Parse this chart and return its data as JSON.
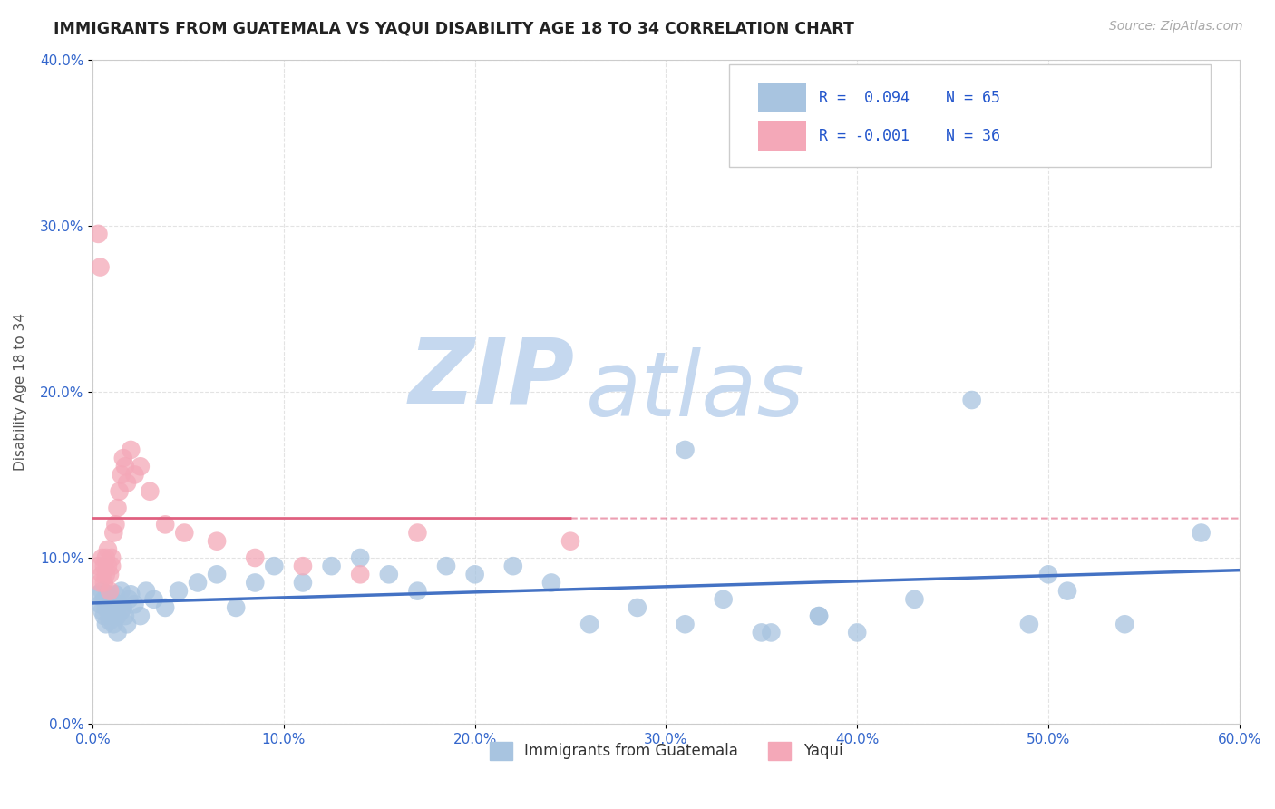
{
  "title": "IMMIGRANTS FROM GUATEMALA VS YAQUI DISABILITY AGE 18 TO 34 CORRELATION CHART",
  "source": "Source: ZipAtlas.com",
  "ylabel": "Disability Age 18 to 34",
  "xlim": [
    0.0,
    0.6
  ],
  "ylim": [
    0.0,
    0.4
  ],
  "xtick_labels": [
    "0.0%",
    "10.0%",
    "20.0%",
    "30.0%",
    "40.0%",
    "50.0%",
    "60.0%"
  ],
  "xtick_vals": [
    0.0,
    0.1,
    0.2,
    0.3,
    0.4,
    0.5,
    0.6
  ],
  "ytick_labels": [
    "0.0%",
    "10.0%",
    "20.0%",
    "30.0%",
    "40.0%"
  ],
  "ytick_vals": [
    0.0,
    0.1,
    0.2,
    0.3,
    0.4
  ],
  "color_blue": "#a8c4e0",
  "color_pink": "#f4a8b8",
  "line_blue": "#4472C4",
  "line_pink": "#e06080",
  "watermark_zip": "ZIP",
  "watermark_atlas": "atlas",
  "watermark_color": "#d0dff0",
  "blue_x": [
    0.003,
    0.004,
    0.005,
    0.005,
    0.006,
    0.006,
    0.007,
    0.007,
    0.008,
    0.008,
    0.009,
    0.009,
    0.01,
    0.01,
    0.011,
    0.011,
    0.012,
    0.012,
    0.013,
    0.013,
    0.014,
    0.015,
    0.015,
    0.016,
    0.017,
    0.018,
    0.019,
    0.02,
    0.022,
    0.025,
    0.028,
    0.032,
    0.038,
    0.045,
    0.055,
    0.065,
    0.075,
    0.085,
    0.095,
    0.11,
    0.125,
    0.14,
    0.155,
    0.17,
    0.185,
    0.2,
    0.22,
    0.24,
    0.26,
    0.285,
    0.31,
    0.33,
    0.355,
    0.38,
    0.4,
    0.43,
    0.46,
    0.49,
    0.51,
    0.54,
    0.31,
    0.35,
    0.38,
    0.5,
    0.58
  ],
  "blue_y": [
    0.078,
    0.072,
    0.068,
    0.08,
    0.075,
    0.065,
    0.07,
    0.06,
    0.078,
    0.068,
    0.072,
    0.062,
    0.075,
    0.065,
    0.07,
    0.06,
    0.068,
    0.078,
    0.065,
    0.055,
    0.072,
    0.08,
    0.068,
    0.07,
    0.065,
    0.06,
    0.075,
    0.078,
    0.072,
    0.065,
    0.08,
    0.075,
    0.07,
    0.08,
    0.085,
    0.09,
    0.07,
    0.085,
    0.095,
    0.085,
    0.095,
    0.1,
    0.09,
    0.08,
    0.095,
    0.09,
    0.095,
    0.085,
    0.06,
    0.07,
    0.06,
    0.075,
    0.055,
    0.065,
    0.055,
    0.075,
    0.195,
    0.06,
    0.08,
    0.06,
    0.165,
    0.055,
    0.065,
    0.09,
    0.115
  ],
  "pink_x": [
    0.003,
    0.004,
    0.005,
    0.005,
    0.006,
    0.006,
    0.007,
    0.007,
    0.008,
    0.008,
    0.009,
    0.009,
    0.01,
    0.01,
    0.011,
    0.012,
    0.013,
    0.014,
    0.015,
    0.016,
    0.017,
    0.018,
    0.02,
    0.022,
    0.025,
    0.03,
    0.038,
    0.048,
    0.065,
    0.085,
    0.11,
    0.14,
    0.17,
    0.25,
    0.003,
    0.004
  ],
  "pink_y": [
    0.095,
    0.085,
    0.09,
    0.1,
    0.095,
    0.085,
    0.1,
    0.09,
    0.095,
    0.105,
    0.08,
    0.09,
    0.095,
    0.1,
    0.115,
    0.12,
    0.13,
    0.14,
    0.15,
    0.16,
    0.155,
    0.145,
    0.165,
    0.15,
    0.155,
    0.14,
    0.12,
    0.115,
    0.11,
    0.1,
    0.095,
    0.09,
    0.115,
    0.11,
    0.295,
    0.275
  ]
}
